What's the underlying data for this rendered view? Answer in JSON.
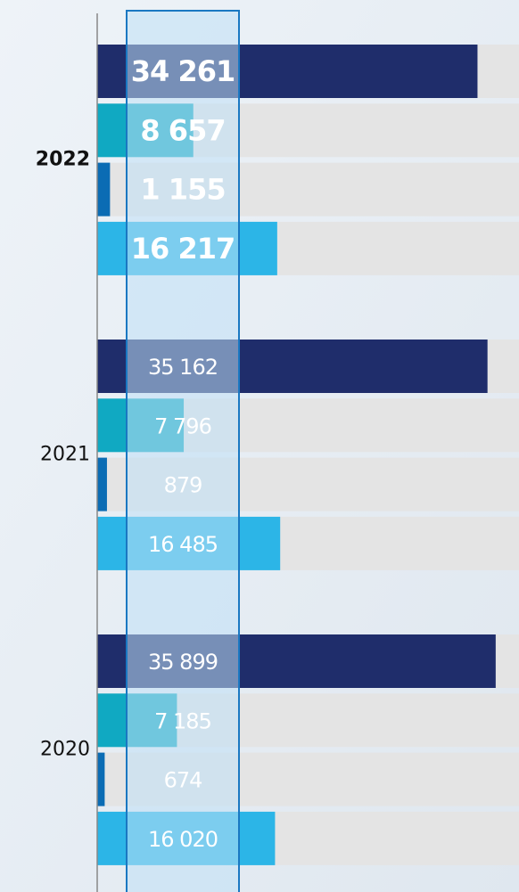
{
  "chart_data": {
    "type": "bar",
    "orientation": "horizontal",
    "categories": [
      "2022",
      "2021",
      "2020"
    ],
    "xlim": [
      0,
      38000
    ],
    "series": [
      {
        "color": "#1f2d6b",
        "values": [
          34261,
          35162,
          35899
        ],
        "value_labels": [
          "34 261",
          "35 162",
          "35 899"
        ]
      },
      {
        "color": "#10a9c2",
        "values": [
          8657,
          7796,
          7185
        ],
        "value_labels": [
          "8 657",
          "7 796",
          "7 185"
        ]
      },
      {
        "color": "#0b6cb4",
        "values": [
          1155,
          879,
          674
        ],
        "value_labels": [
          "1 155",
          "879",
          "674"
        ]
      },
      {
        "color": "#2cb5e7",
        "values": [
          16217,
          16485,
          16020
        ],
        "value_labels": [
          "16 217",
          "16 485",
          "16 020"
        ]
      }
    ]
  }
}
